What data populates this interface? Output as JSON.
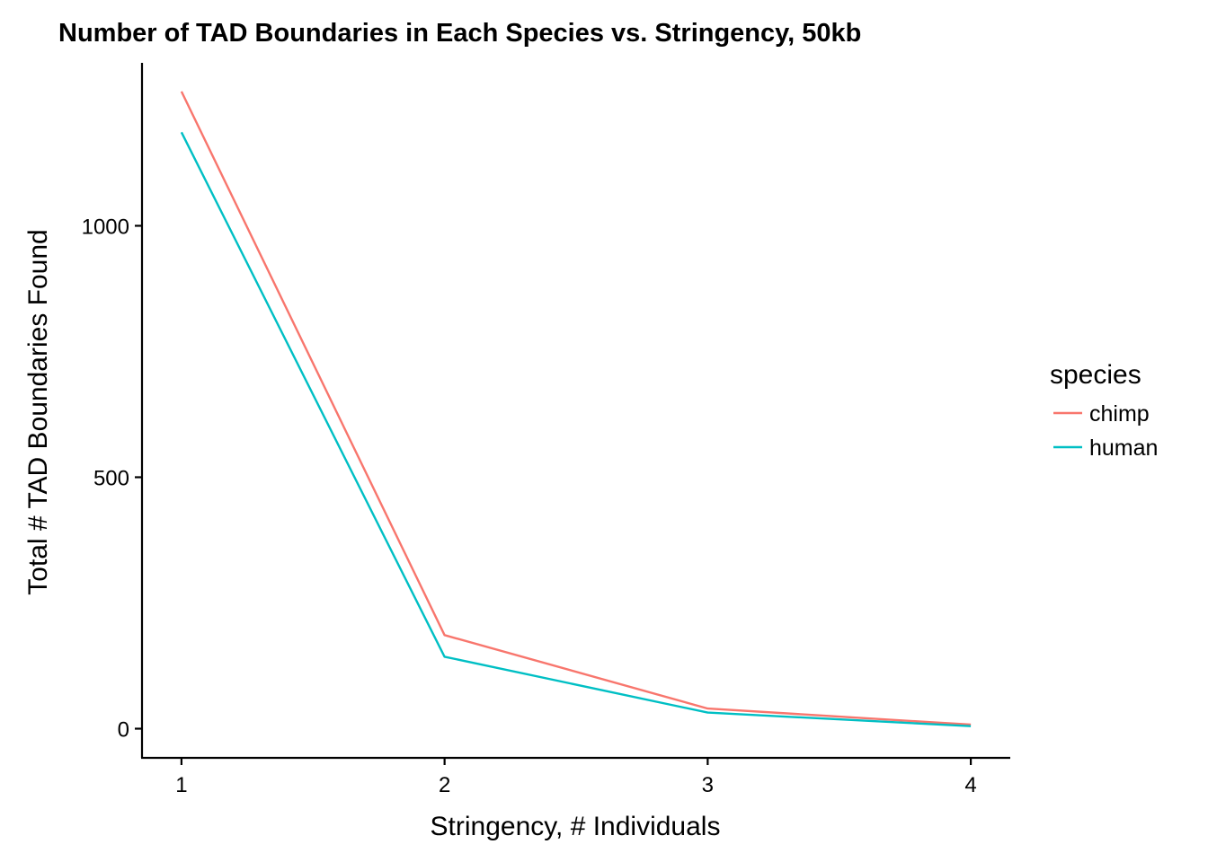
{
  "chart_data": {
    "type": "line",
    "title": "Number of TAD Boundaries in Each Species vs. Stringency, 50kb",
    "xlabel": "Stringency, # Individuals",
    "ylabel": "Total # TAD Boundaries Found",
    "x": [
      1,
      2,
      3,
      4
    ],
    "x_ticks": [
      "1",
      "2",
      "3",
      "4"
    ],
    "y_ticks": [
      0,
      500,
      1000
    ],
    "y_tick_labels": [
      "0",
      "500",
      "1000"
    ],
    "xlim": [
      0.85,
      4.15
    ],
    "ylim": [
      -58,
      1324
    ],
    "grid": false,
    "legend": {
      "title": "species",
      "placement": "right"
    },
    "series": [
      {
        "name": "chimp",
        "color": "#F8766D",
        "values": [
          1267,
          186,
          40,
          8
        ]
      },
      {
        "name": "human",
        "color": "#00BFC4",
        "values": [
          1186,
          143,
          32,
          5
        ]
      }
    ]
  }
}
